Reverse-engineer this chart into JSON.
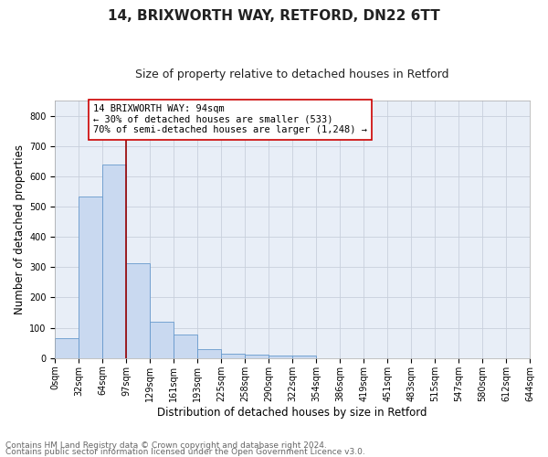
{
  "title": "14, BRIXWORTH WAY, RETFORD, DN22 6TT",
  "subtitle": "Size of property relative to detached houses in Retford",
  "xlabel": "Distribution of detached houses by size in Retford",
  "ylabel": "Number of detached properties",
  "bar_values": [
    65,
    533,
    638,
    312,
    120,
    77,
    30,
    15,
    10,
    8,
    9,
    0,
    0,
    0,
    0,
    0,
    0,
    0,
    0,
    0
  ],
  "bar_labels": [
    "0sqm",
    "32sqm",
    "64sqm",
    "97sqm",
    "129sqm",
    "161sqm",
    "193sqm",
    "225sqm",
    "258sqm",
    "290sqm",
    "322sqm",
    "354sqm",
    "386sqm",
    "419sqm",
    "451sqm",
    "483sqm",
    "515sqm",
    "547sqm",
    "580sqm",
    "612sqm",
    "644sqm"
  ],
  "bar_color": "#c9d9f0",
  "bar_edge_color": "#6699cc",
  "grid_color": "#c8d0dc",
  "bg_color": "#e8eef7",
  "vline_color": "#990000",
  "vline_x": 3.0,
  "annotation_text": "14 BRIXWORTH WAY: 94sqm\n← 30% of detached houses are smaller (533)\n70% of semi-detached houses are larger (1,248) →",
  "annotation_box_color": "#ffffff",
  "annotation_box_edge": "#cc0000",
  "ylim": [
    0,
    850
  ],
  "yticks": [
    0,
    100,
    200,
    300,
    400,
    500,
    600,
    700,
    800
  ],
  "xlim": [
    0,
    20
  ],
  "footer_line1": "Contains HM Land Registry data © Crown copyright and database right 2024.",
  "footer_line2": "Contains public sector information licensed under the Open Government Licence v3.0.",
  "title_fontsize": 11,
  "subtitle_fontsize": 9,
  "axis_label_fontsize": 8.5,
  "tick_fontsize": 7,
  "annotation_fontsize": 7.5,
  "footer_fontsize": 6.5
}
